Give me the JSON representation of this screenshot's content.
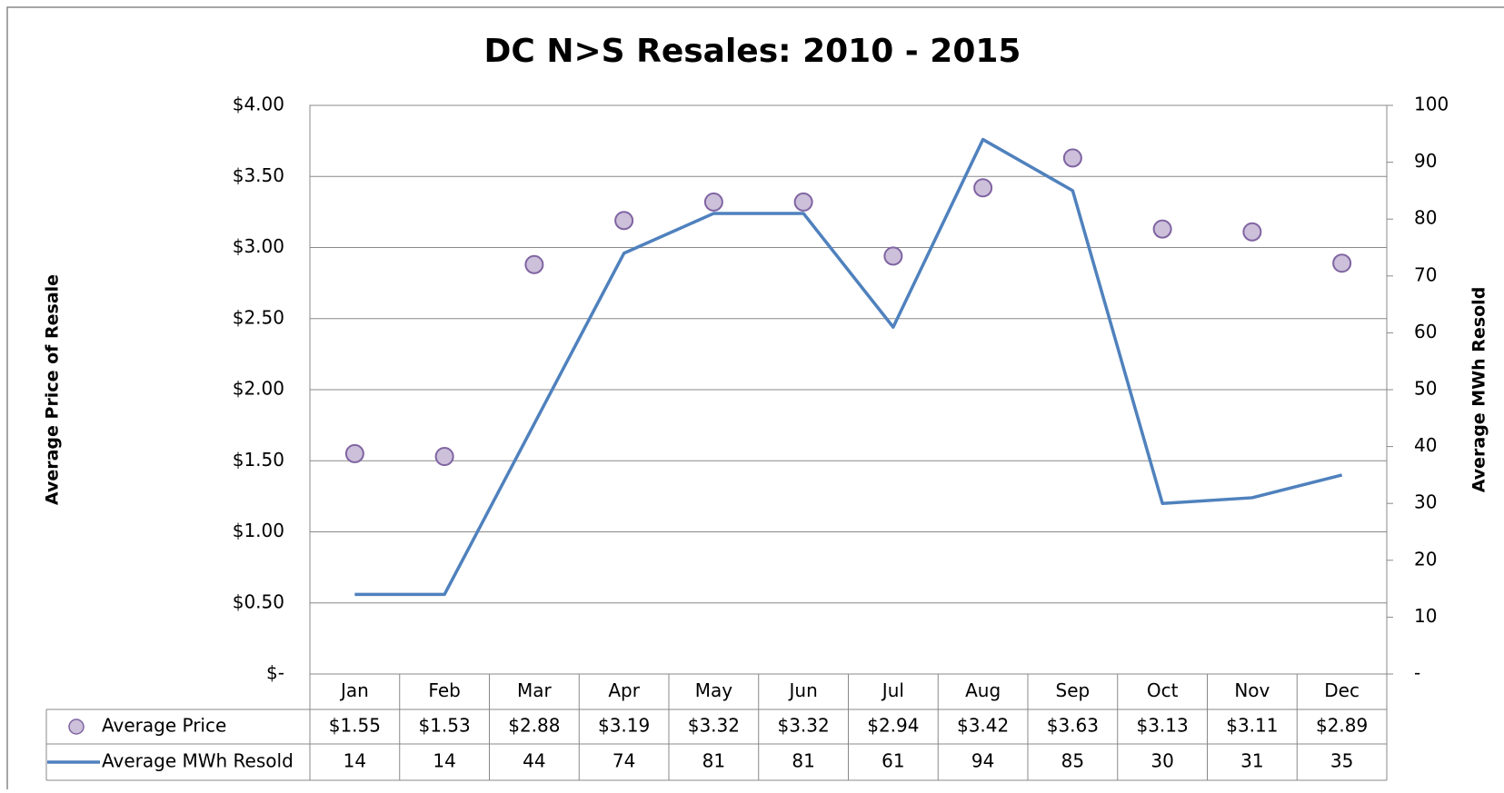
{
  "chart_data": {
    "type": "line",
    "title": "DC N>S Resales: 2010 - 2015",
    "ylabel": "Average Price of Resale",
    "y2label": "Average MWh Resold",
    "categories": [
      "Jan",
      "Feb",
      "Mar",
      "Apr",
      "May",
      "Jun",
      "Jul",
      "Aug",
      "Sep",
      "Oct",
      "Nov",
      "Dec"
    ],
    "series": [
      {
        "name": "Average Price",
        "color": "#8064a2",
        "fill": "#ccc0da",
        "mode": "markers",
        "axis": "y",
        "values": [
          1.55,
          1.53,
          2.88,
          3.19,
          3.32,
          3.32,
          2.94,
          3.42,
          3.63,
          3.13,
          3.11,
          2.89
        ],
        "value_labels": [
          "$1.55",
          "$1.53",
          "$2.88",
          "$3.19",
          "$3.32",
          "$3.32",
          "$2.94",
          "$3.42",
          "$3.63",
          "$3.13",
          "$3.11",
          "$2.89"
        ]
      },
      {
        "name": "Average MWh Resold",
        "color": "#4f81bd",
        "mode": "line",
        "axis": "y2",
        "values": [
          14,
          14,
          44,
          74,
          81,
          81,
          61,
          94,
          85,
          30,
          31,
          35
        ]
      }
    ],
    "ylim": [
      0,
      4
    ],
    "yticks": [
      {
        "value": 0,
        "label": "$-"
      },
      {
        "value": 0.5,
        "label": "$0.50"
      },
      {
        "value": 1,
        "label": "$1.00"
      },
      {
        "value": 1.5,
        "label": "$1.50"
      },
      {
        "value": 2,
        "label": "$2.00"
      },
      {
        "value": 2.5,
        "label": "$2.50"
      },
      {
        "value": 3,
        "label": "$3.00"
      },
      {
        "value": 3.5,
        "label": "$3.50"
      },
      {
        "value": 4,
        "label": "$4.00"
      }
    ],
    "y2lim": [
      0,
      100
    ],
    "y2ticks": [
      {
        "value": 0,
        "label": "-"
      },
      10,
      20,
      30,
      40,
      50,
      60,
      70,
      80,
      90,
      100
    ],
    "grid": true
  }
}
